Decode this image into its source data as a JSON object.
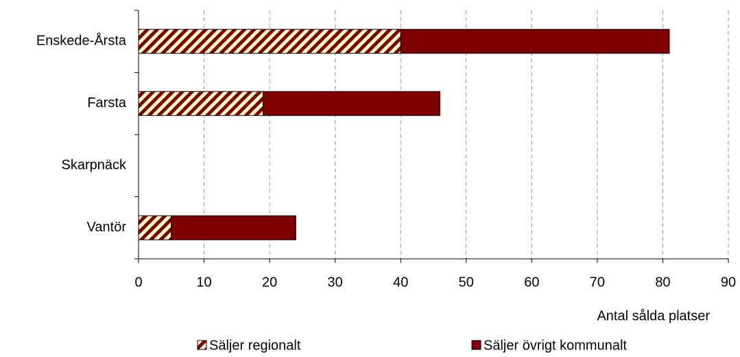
{
  "chart_data": {
    "type": "stacked-bar-horizontal",
    "categories": [
      "Enskede-Årsta",
      "Farsta",
      "Skarpnäck",
      "Vantör"
    ],
    "series": [
      {
        "name": "Säljer regionalt",
        "color": "#800000",
        "background": "#ffffcc",
        "hatch": true,
        "values": [
          40,
          19,
          0,
          5
        ]
      },
      {
        "name": "Säljer övrigt kommunalt",
        "color": "#800000",
        "hatch": false,
        "values": [
          41,
          27,
          0,
          19
        ]
      }
    ],
    "xlim": [
      0,
      90
    ],
    "xticks": [
      0,
      10,
      20,
      30,
      40,
      50,
      60,
      70,
      80,
      90
    ],
    "x_label": "Antal sålda platser",
    "grid": true
  }
}
